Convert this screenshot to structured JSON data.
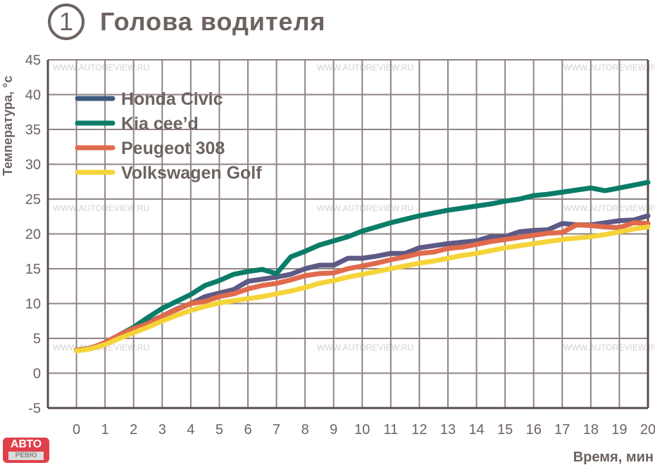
{
  "header": {
    "number": "1",
    "title": "Голова водителя"
  },
  "watermark": "WWW.AUTOREVIEW.RU",
  "logo": {
    "top": "АВТО",
    "bottom": "РЕВЮ"
  },
  "colors": {
    "grid": "#8f8582",
    "axis": "#5a4e4b",
    "text": "#6d6360"
  },
  "chart_data": {
    "type": "line",
    "title": "Голова водителя",
    "xlabel": "Время, мин",
    "ylabel": "Температура, °с",
    "xlim": [
      -1,
      20
    ],
    "ylim": [
      -5,
      45
    ],
    "xticks": [
      0,
      1,
      2,
      3,
      4,
      5,
      6,
      7,
      8,
      9,
      10,
      11,
      12,
      13,
      14,
      15,
      16,
      17,
      18,
      19,
      20
    ],
    "yticks": [
      -5,
      0,
      5,
      10,
      15,
      20,
      25,
      30,
      35,
      40,
      45
    ],
    "grid": true,
    "legend_position": "top-left",
    "x": [
      0,
      0.5,
      1,
      1.5,
      2,
      2.5,
      3,
      3.5,
      4,
      4.5,
      5,
      5.5,
      6,
      6.5,
      7,
      7.5,
      8,
      8.5,
      9,
      9.5,
      10,
      10.5,
      11,
      11.5,
      12,
      12.5,
      13,
      13.5,
      14,
      14.5,
      15,
      15.5,
      16,
      16.5,
      17,
      17.5,
      18,
      18.5,
      19,
      19.5,
      20
    ],
    "series": [
      {
        "name": "Honda Civic",
        "color": "#5e5a86",
        "legend_color": "#3e5a7c",
        "values": [
          3.3,
          3.6,
          4.3,
          5.2,
          6.2,
          7.3,
          8.2,
          9.2,
          10,
          11,
          11.5,
          12,
          13.2,
          13.5,
          13.8,
          14.2,
          15,
          15.5,
          15.5,
          16.5,
          16.5,
          16.8,
          17.2,
          17.2,
          18,
          18.3,
          18.6,
          18.8,
          19,
          19.6,
          19.6,
          20.3,
          20.5,
          20.6,
          21.5,
          21.3,
          21.3,
          21.6,
          21.9,
          22,
          22.6
        ]
      },
      {
        "name": "Kia cee’d",
        "color": "#0a7c68",
        "legend_color": "#0a7c68",
        "values": [
          3.3,
          3.6,
          4.3,
          5.5,
          6.6,
          8,
          9.3,
          10.3,
          11.3,
          12.6,
          13.3,
          14.2,
          14.6,
          14.9,
          14.3,
          16.7,
          17.5,
          18.4,
          19,
          19.6,
          20.4,
          21,
          21.6,
          22.1,
          22.6,
          23,
          23.4,
          23.7,
          24,
          24.3,
          24.7,
          25,
          25.5,
          25.7,
          26,
          26.3,
          26.6,
          26.2,
          26.6,
          27,
          27.4
        ]
      },
      {
        "name": "Peugeot 308",
        "color": "#e06a4c",
        "legend_color": "#e06a4c",
        "values": [
          3.3,
          3.6,
          4.4,
          5.5,
          6.4,
          7.1,
          8.2,
          9.1,
          10,
          10.3,
          11,
          11.4,
          12.1,
          12.6,
          12.9,
          13.4,
          14,
          14.3,
          14.4,
          15,
          15.4,
          15.8,
          16.3,
          16.7,
          17.2,
          17.4,
          17.9,
          18.1,
          18.5,
          18.9,
          19.2,
          19.5,
          19.8,
          20.1,
          20.2,
          21.3,
          21.2,
          21,
          20.9,
          21.6,
          21.5
        ]
      },
      {
        "name": "Volkswagen Golf",
        "color": "#f5d43a",
        "legend_color": "#f5d43a",
        "values": [
          3.2,
          3.5,
          4.1,
          5,
          5.8,
          6.6,
          7.5,
          8.3,
          9,
          9.6,
          10.1,
          10.4,
          10.7,
          11,
          11.4,
          11.8,
          12.3,
          12.9,
          13.3,
          13.8,
          14.2,
          14.6,
          15,
          15.4,
          15.8,
          16.1,
          16.5,
          16.9,
          17.2,
          17.6,
          18,
          18.3,
          18.6,
          18.9,
          19.2,
          19.4,
          19.6,
          19.9,
          20.3,
          20.7,
          21
        ]
      }
    ]
  }
}
